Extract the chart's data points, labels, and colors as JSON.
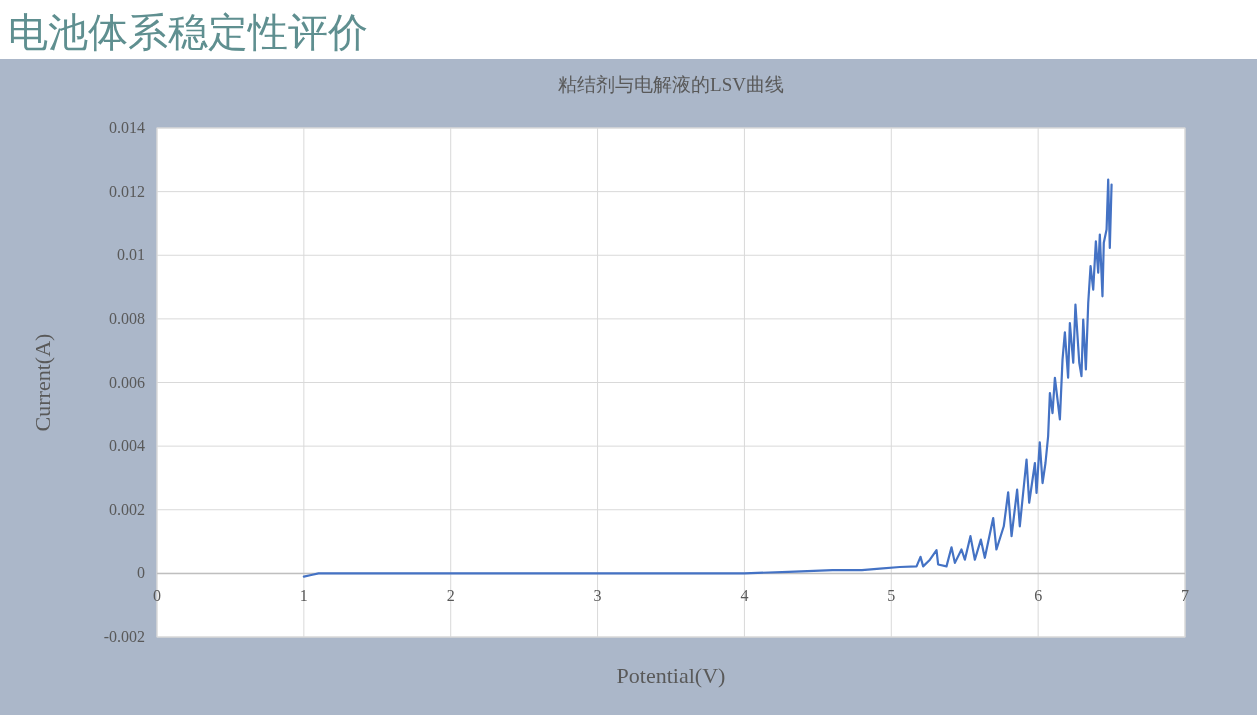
{
  "chart_data": {
    "type": "line",
    "title": "电池体系稳定性评价",
    "subtitle": "粘结剂与电解液的LSV曲线",
    "xlabel": "Potential(V)",
    "ylabel": "Current(A)",
    "xlim": [
      0,
      7
    ],
    "xticks": [
      0,
      1,
      2,
      3,
      4,
      5,
      6,
      7
    ],
    "ylim": [
      -0.002,
      0.014
    ],
    "yticks": [
      {
        "value": -0.002,
        "label": "-0.002"
      },
      0,
      {
        "value": 0.002,
        "label": "0.002"
      },
      {
        "value": 0.004,
        "label": "0.004"
      },
      {
        "value": 0.006,
        "label": "0.006"
      },
      {
        "value": 0.008,
        "label": "0.008"
      },
      {
        "value": 0.01,
        "label": "0.01"
      },
      {
        "value": 0.012,
        "label": "0.012"
      },
      {
        "value": 0.014,
        "label": "0.014"
      }
    ],
    "grid": true,
    "marker": "none",
    "line_style": "solid",
    "series": [
      {
        "color": "#4472c4",
        "x": [
          1,
          1.05,
          1.1,
          1.3,
          1.6,
          2,
          2.5,
          3,
          3.5,
          4,
          4.3,
          4.6,
          4.8,
          4.922,
          5.058,
          5.172,
          5.199,
          5.217,
          5.263,
          5.308,
          5.319,
          5.376,
          5.41,
          5.433,
          5.478,
          5.501,
          5.539,
          5.569,
          5.61,
          5.637,
          5.694,
          5.716,
          5.766,
          5.796,
          5.819,
          5.857,
          5.875,
          5.921,
          5.939,
          5.978,
          5.989,
          6.011,
          6.03,
          6.05,
          6.068,
          6.08,
          6.098,
          6.114,
          6.148,
          6.166,
          6.182,
          6.204,
          6.216,
          6.239,
          6.254,
          6.28,
          6.295,
          6.307,
          6.325,
          6.341,
          6.357,
          6.375,
          6.393,
          6.409,
          6.42,
          6.438,
          6.447,
          6.466,
          6.477,
          6.488,
          6.5
        ],
        "values": [
          -0.0001,
          -5e-05,
          0,
          0,
          0,
          0,
          0,
          0,
          0,
          0,
          5e-05,
          0.0001,
          0.0001,
          0.00015,
          0.0002,
          0.00022,
          0.00052,
          0.00022,
          0.00043,
          0.00073,
          0.00028,
          0.00022,
          0.00082,
          0.00033,
          0.00075,
          0.00043,
          0.00117,
          0.00043,
          0.00106,
          0.00049,
          0.00174,
          0.00075,
          0.00148,
          0.00255,
          0.00117,
          0.00263,
          0.00148,
          0.00358,
          0.00222,
          0.00347,
          0.00253,
          0.00412,
          0.00284,
          0.00347,
          0.00431,
          0.00567,
          0.00504,
          0.00615,
          0.00484,
          0.00672,
          0.00758,
          0.00615,
          0.00787,
          0.00662,
          0.00845,
          0.00662,
          0.0062,
          0.00798,
          0.00641,
          0.0085,
          0.00966,
          0.00892,
          0.01044,
          0.00945,
          0.01065,
          0.00871,
          0.01039,
          0.01081,
          0.01238,
          0.01023,
          0.01222
        ]
      }
    ]
  }
}
